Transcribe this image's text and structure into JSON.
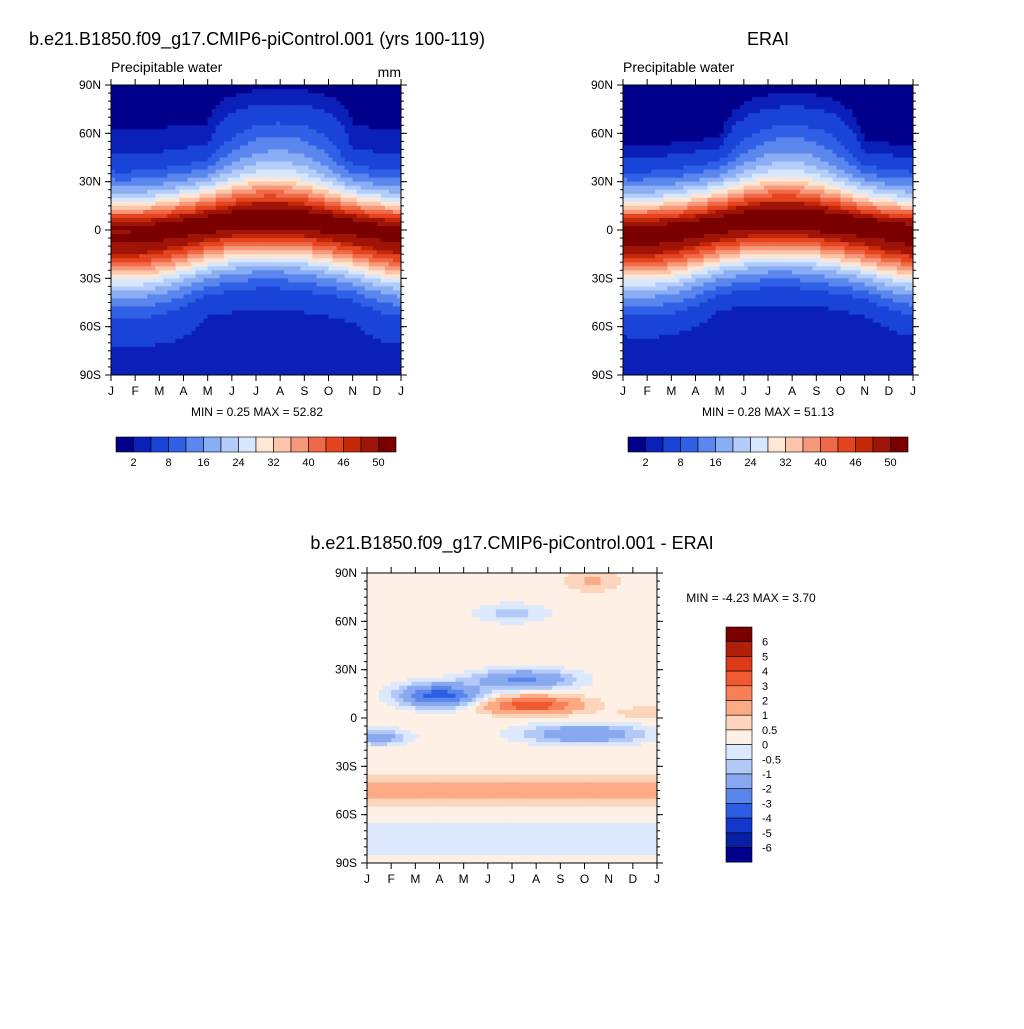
{
  "panels": {
    "model": {
      "title": "b.e21.B1850.f09_g17.CMIP6-piControl.001 (yrs 100-119)",
      "left_label": "Precipitable water",
      "right_label": "mm",
      "stats": "MIN =   0.25 MAX =  52.82"
    },
    "obs": {
      "title": "ERAI",
      "left_label": "Precipitable water",
      "stats": "MIN =   0.28 MAX =  51.13"
    },
    "diff": {
      "title": "b.e21.B1850.f09_g17.CMIP6-piControl.001 - ERAI",
      "stats": "MIN =  -4.23 MAX =   3.70"
    }
  },
  "colorbars": {
    "field_labels": [
      "2",
      "8",
      "16",
      "24",
      "32",
      "40",
      "46",
      "50"
    ],
    "field_colors": [
      "#00008b",
      "#0b20b8",
      "#1a44d8",
      "#3060e6",
      "#5a86ee",
      "#8aaef4",
      "#b4ccf8",
      "#d8e8fc",
      "#fde6d4",
      "#fcc4a8",
      "#f8987a",
      "#f06a48",
      "#e44420",
      "#c42808",
      "#a01408",
      "#7a0000"
    ],
    "diff_labels": [
      "6",
      "5",
      "4",
      "3",
      "2",
      "1",
      "0.5",
      "0",
      "-0.5",
      "-1",
      "-2",
      "-3",
      "-4",
      "-5",
      "-6"
    ],
    "diff_colors": [
      "#7a0000",
      "#b02008",
      "#dc3a18",
      "#f05a30",
      "#f88058",
      "#fcaa84",
      "#fdd4bc",
      "#fef0e4",
      "#dce8fc",
      "#b2c8f6",
      "#88a8f0",
      "#5a86ec",
      "#2c5ee4",
      "#1438cc",
      "#0820a4",
      "#00008b"
    ]
  },
  "chart_data": [
    {
      "type": "heatmap",
      "title": "b.e21.B1850.f09_g17.CMIP6-piControl.001 (yrs 100-119)",
      "subtitle": "Precipitable water",
      "unit": "mm",
      "x": [
        "J",
        "F",
        "M",
        "A",
        "M",
        "J",
        "J",
        "A",
        "S",
        "O",
        "N",
        "D",
        "J"
      ],
      "y_ticks": [
        "90N",
        "60N",
        "30N",
        "0",
        "30S",
        "60S",
        "90S"
      ],
      "ylim": [
        -90,
        90
      ],
      "levels": [
        2,
        8,
        16,
        24,
        32,
        40,
        46,
        50
      ],
      "min": 0.25,
      "max": 52.82
    },
    {
      "type": "heatmap",
      "title": "ERAI",
      "subtitle": "Precipitable water",
      "x": [
        "J",
        "F",
        "M",
        "A",
        "M",
        "J",
        "J",
        "A",
        "S",
        "O",
        "N",
        "D",
        "J"
      ],
      "y_ticks": [
        "90N",
        "60N",
        "30N",
        "0",
        "30S",
        "60S",
        "90S"
      ],
      "ylim": [
        -90,
        90
      ],
      "levels": [
        2,
        8,
        16,
        24,
        32,
        40,
        46,
        50
      ],
      "min": 0.28,
      "max": 51.13
    },
    {
      "type": "heatmap",
      "title": "b.e21.B1850.f09_g17.CMIP6-piControl.001 - ERAI",
      "x": [
        "J",
        "F",
        "M",
        "A",
        "M",
        "J",
        "J",
        "A",
        "S",
        "O",
        "N",
        "D",
        "J"
      ],
      "y_ticks": [
        "90N",
        "60N",
        "30N",
        "0",
        "30S",
        "60S",
        "90S"
      ],
      "ylim": [
        -90,
        90
      ],
      "levels": [
        -6,
        -5,
        -4,
        -3,
        -2,
        -1,
        -0.5,
        0,
        0.5,
        1,
        2,
        3,
        4,
        5,
        6
      ],
      "min": -4.23,
      "max": 3.7
    }
  ]
}
